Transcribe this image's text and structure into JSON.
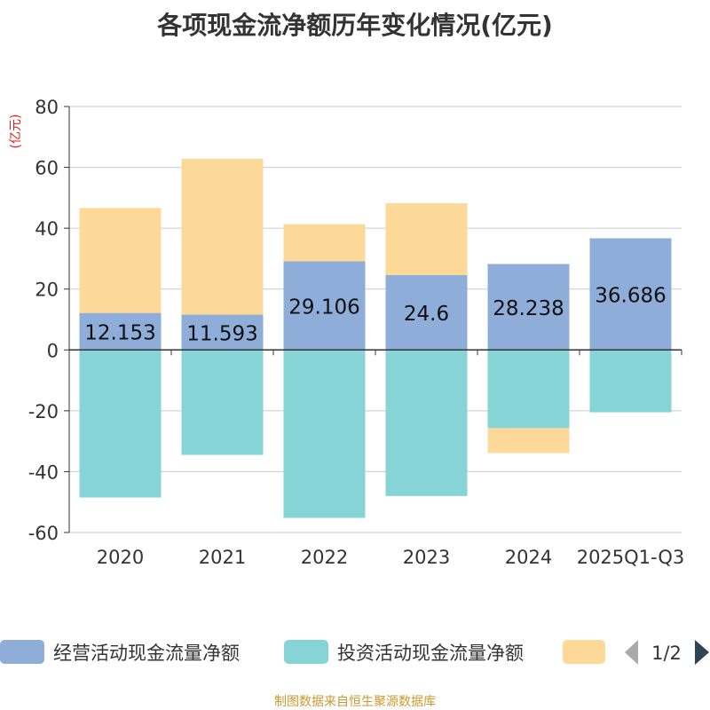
{
  "chart_data": {
    "type": "bar",
    "stacked": true,
    "title": "各项现金流净额历年变化情况(亿元)",
    "ylabel": "(亿元)",
    "xlabel": "",
    "ylim": [
      -60,
      80
    ],
    "yticks": [
      -60,
      -40,
      -20,
      0,
      20,
      40,
      60,
      80
    ],
    "categories": [
      "2020",
      "2021",
      "2022",
      "2023",
      "2024",
      "2025Q1-Q3"
    ],
    "series": [
      {
        "name": "经营活动现金流量净额",
        "color": "#8fadd9",
        "values": [
          12.153,
          11.593,
          29.106,
          24.6,
          28.238,
          36.686
        ],
        "labels": [
          "12.153",
          "11.593",
          "29.106",
          "24.6",
          "28.238",
          "36.686"
        ]
      },
      {
        "name": "投资活动现金流量净额",
        "color": "#87d4d6",
        "values": [
          -48.5,
          -34.5,
          -55.2,
          -48.0,
          -25.7,
          -20.5
        ]
      },
      {
        "name": "",
        "color": "#fdd999",
        "values": [
          34.5,
          51.2,
          12.2,
          23.6,
          -8.2,
          0
        ]
      }
    ],
    "grid": true,
    "legend_position": "bottom"
  },
  "legend": {
    "page": "1/2"
  },
  "footer": {
    "source": "制图数据来自恒生聚源数据库"
  }
}
